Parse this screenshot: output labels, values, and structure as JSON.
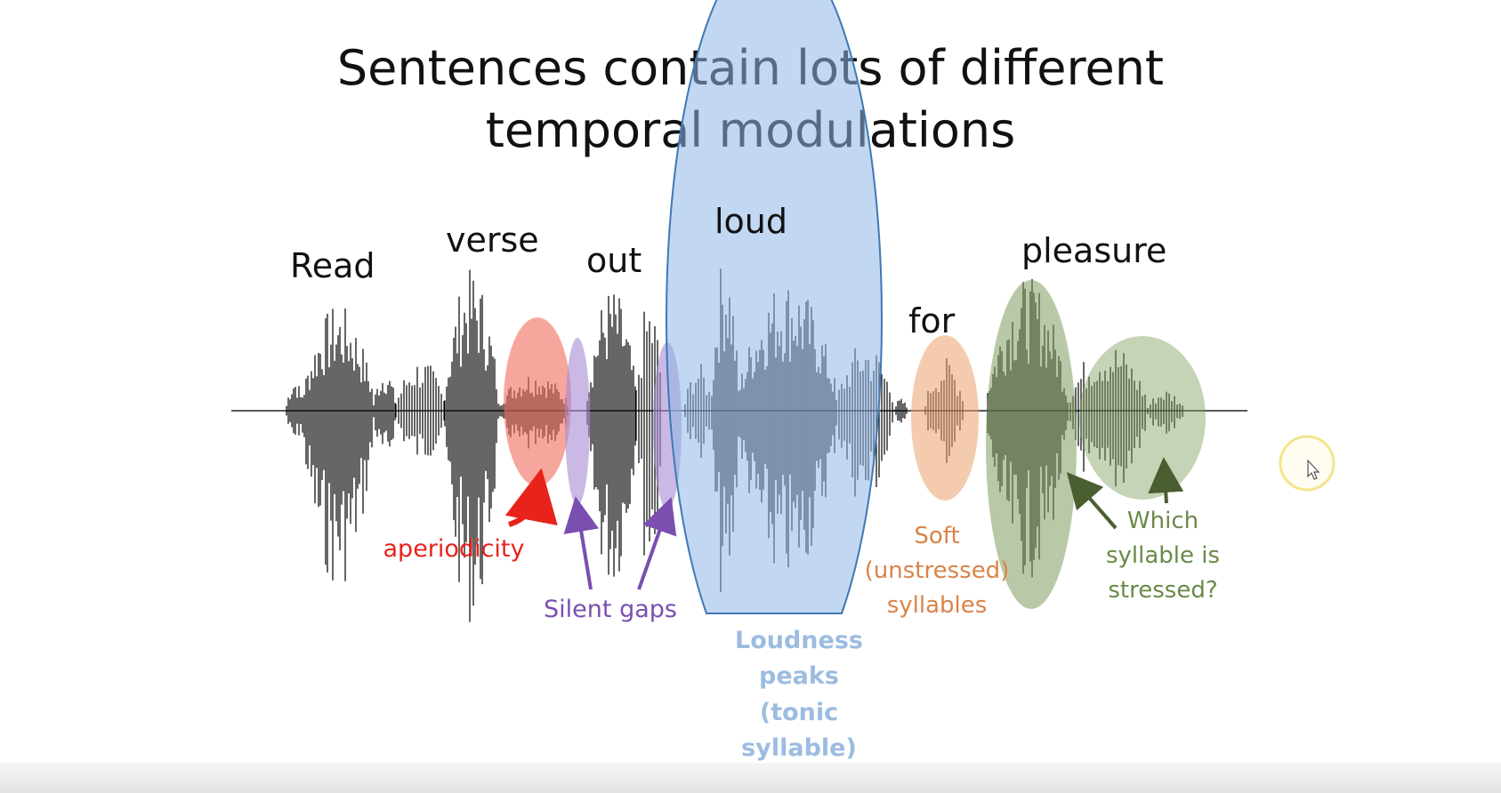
{
  "slide": {
    "title_line1": "Sentences contain lots of different",
    "title_line2": "temporal modulations"
  },
  "words": {
    "w1": "Read",
    "w2": "verse",
    "w3": "out",
    "w4": "loud",
    "w5": "for",
    "w6": "pleasure"
  },
  "annotations": {
    "aperiodicity": "aperiodicity",
    "silent_gaps": "Silent gaps",
    "loudness": [
      "Loudness",
      "peaks",
      "(tonic",
      "syllable)"
    ],
    "soft": [
      "Soft",
      "(unstressed)",
      "syllables"
    ],
    "stressed": [
      "Which",
      "syllable is",
      "stressed?"
    ]
  },
  "colors": {
    "aperiodicity": "#e8231c",
    "silent_gaps": "#7a4fb0",
    "loudness": "#9cbce0",
    "soft": "#d9844a",
    "stressed": "#6a8a48",
    "waveform": "#000000"
  },
  "icons": {
    "cursor": "mouse-cursor-icon",
    "highlight": "cursor-highlight-ring-icon"
  }
}
